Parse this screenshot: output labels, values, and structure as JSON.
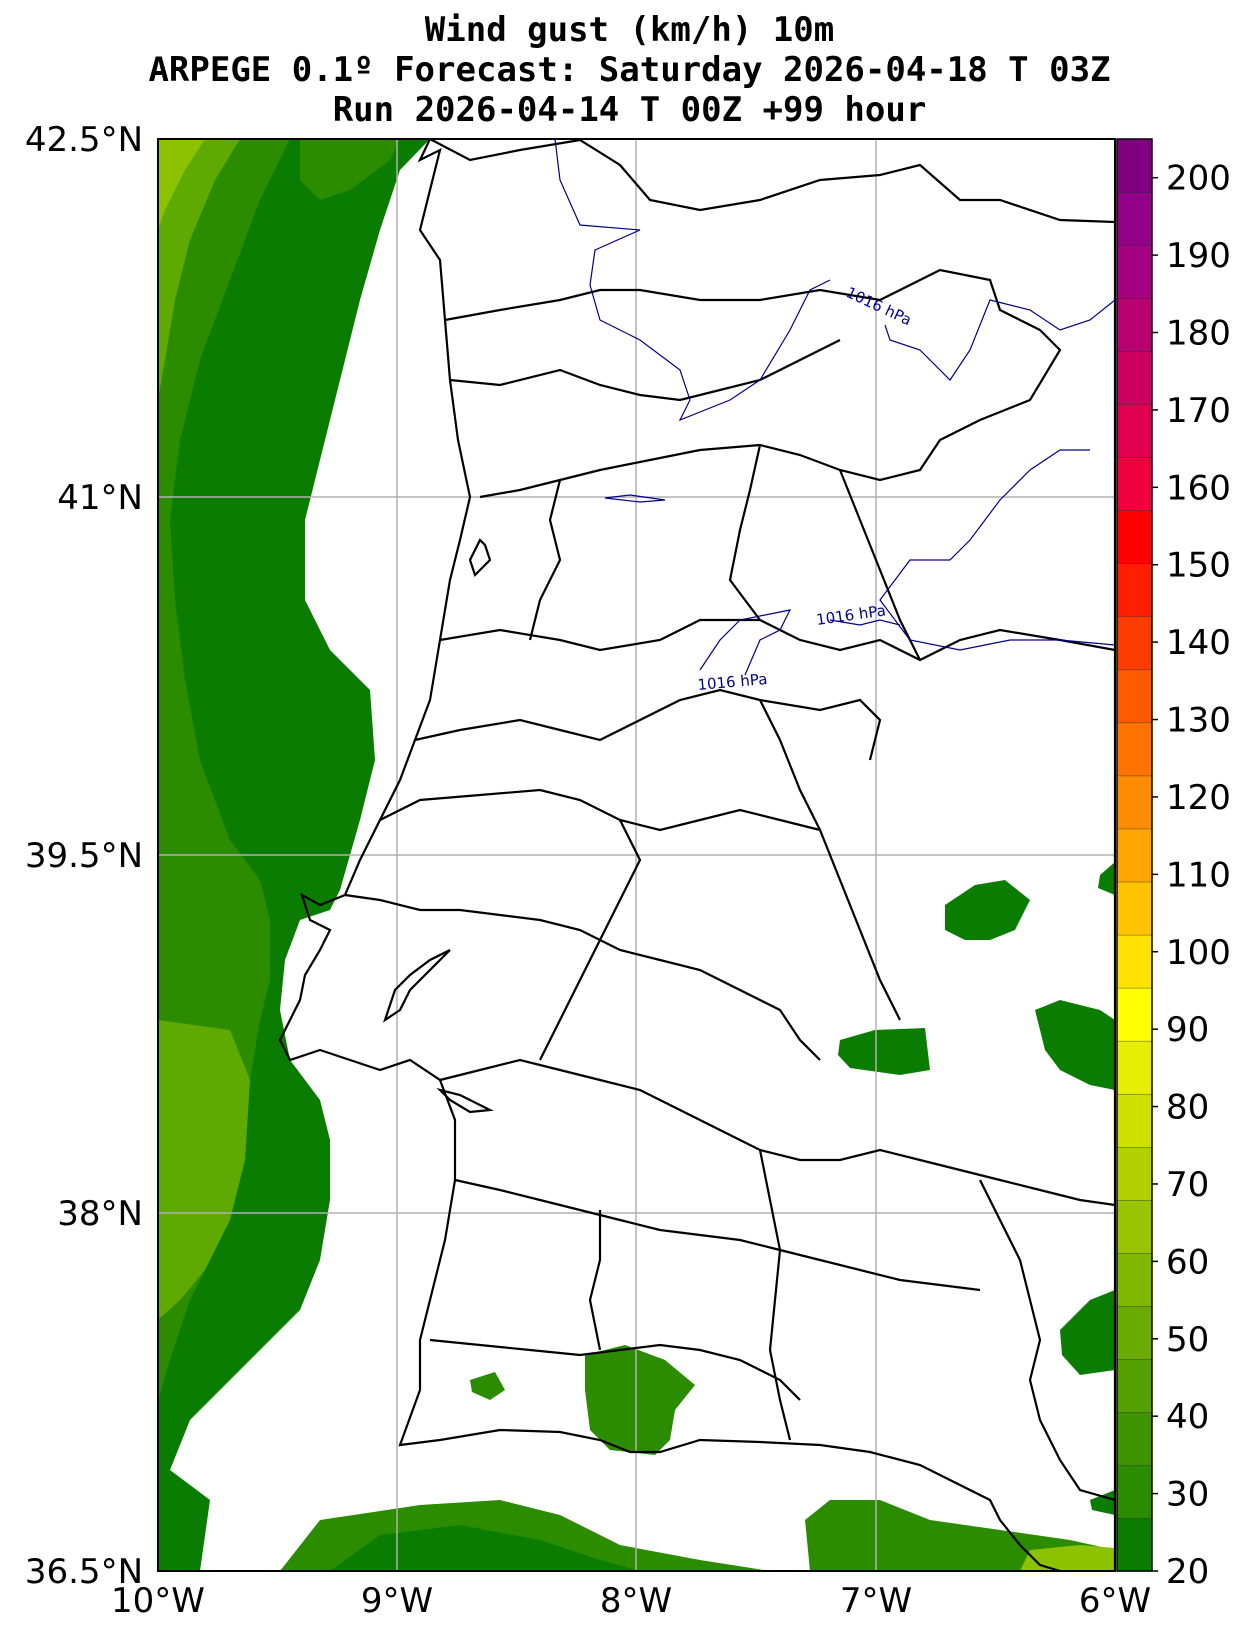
{
  "title": {
    "line1": "Wind gust (km/h) 10m",
    "line2": "ARPEGE 0.1º Forecast: Saturday 2026-04-18 T 03Z",
    "line3": "Run 2026-04-14 T 00Z +99 hour"
  },
  "axes": {
    "lat_labels": [
      "42.5°N",
      "41°N",
      "39.5°N",
      "38°N",
      "36.5°N"
    ],
    "lon_labels": [
      "10°W",
      "9°W",
      "8°W",
      "7°W",
      "6°W"
    ]
  },
  "colorbar": {
    "labels": [
      "20",
      "30",
      "40",
      "50",
      "60",
      "70",
      "80",
      "90",
      "100",
      "110",
      "120",
      "130",
      "140",
      "150",
      "160",
      "170",
      "180",
      "190",
      "200"
    ],
    "colors": [
      "#0a7d00",
      "#2b8c00",
      "#3f9500",
      "#54a000",
      "#6aab00",
      "#80b800",
      "#99c400",
      "#b3d000",
      "#cde000",
      "#e6ee00",
      "#ffff00",
      "#ffe000",
      "#ffc300",
      "#ffa500",
      "#ff8c00",
      "#ff7300",
      "#ff5a00",
      "#ff3c00",
      "#ff1e00",
      "#ff0000",
      "#f0003c",
      "#e0004e",
      "#cc0060",
      "#b80070",
      "#a50080",
      "#920088",
      "#800080"
    ]
  },
  "isobars": [
    {
      "label": "1016 hPa"
    },
    {
      "label": "1016 hPa"
    },
    {
      "label": "1016 hPa"
    }
  ],
  "style": {
    "gust_dark": "#0a7d00",
    "gust_mid": "#2b8c00",
    "gust_light": "#5faa00",
    "gust_lighter": "#8cc300",
    "isobar_color": "#00008b",
    "grid_color": "#b0b0b0"
  }
}
